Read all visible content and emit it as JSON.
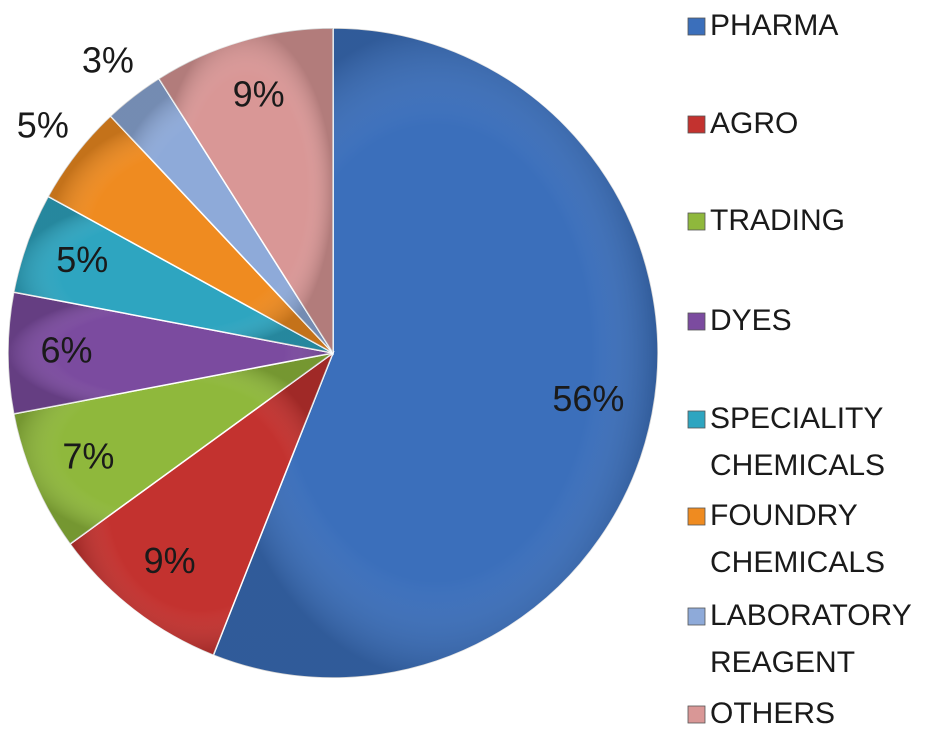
{
  "chart_data": {
    "type": "pie",
    "categories": [
      "PHARMA",
      "AGRO",
      "TRADING",
      "DYES",
      "SPECIALITY CHEMICALS",
      "FOUNDRY CHEMICALS",
      "LABORATORY REAGENT",
      "OTHERS"
    ],
    "values": [
      56,
      9,
      7,
      6,
      5,
      5,
      3,
      9
    ],
    "value_labels": [
      "56%",
      "9%",
      "7%",
      "6%",
      "5%",
      "5%",
      "3%",
      "9%"
    ],
    "colors": [
      "#3b6fbb",
      "#c3322f",
      "#8fb83c",
      "#7b4b9f",
      "#2ea5c0",
      "#ef8b20",
      "#8eaad9",
      "#d99796"
    ]
  }
}
